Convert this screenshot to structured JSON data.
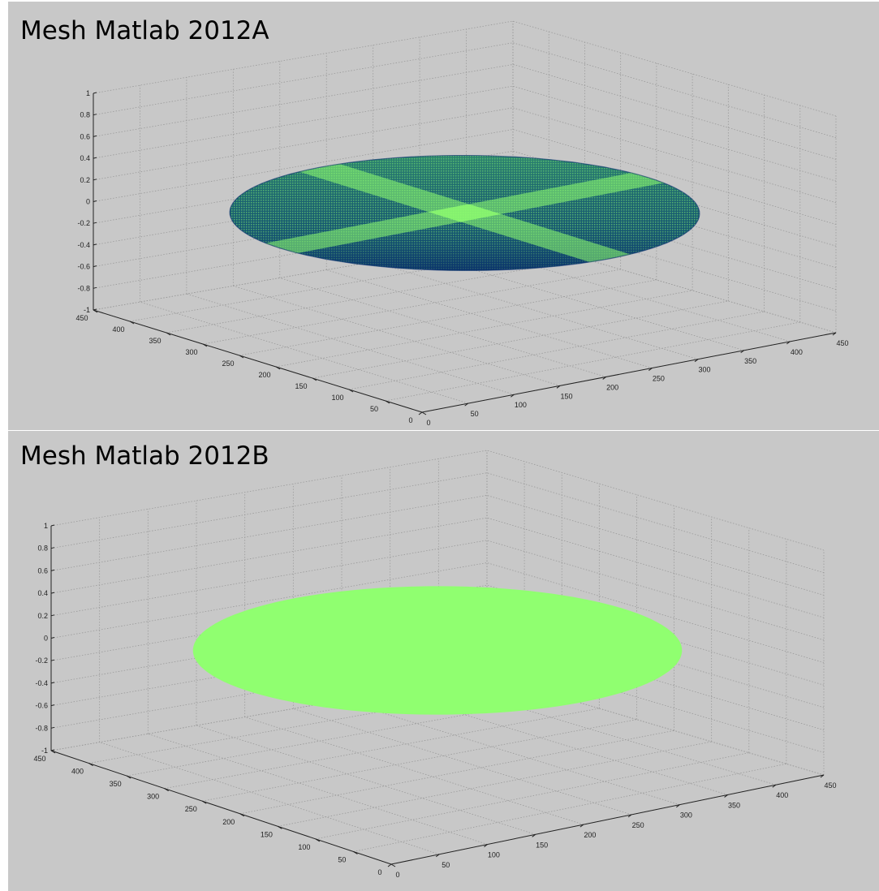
{
  "colors": {
    "figure_background": "#c8c8c8",
    "axes_background": "#ffffff",
    "surface_light": "#90ff70",
    "surface_dark": "#0a2f6e"
  },
  "chart_data": [
    {
      "type": "mesh3d",
      "title": "Mesh Matlab 2012A",
      "surface": "flat disk mesh at z = 0 with dense edge lines; light green cross bands along x and y through the centre, dark blue-green elsewhere",
      "x_ticks": [
        "0",
        "50",
        "100",
        "150",
        "200",
        "250",
        "300",
        "350",
        "400",
        "450"
      ],
      "y_ticks": [
        "0",
        "50",
        "100",
        "150",
        "200",
        "250",
        "300",
        "350",
        "400",
        "450"
      ],
      "z_ticks": [
        "-1",
        "-0.8",
        "-0.6",
        "-0.4",
        "-0.2",
        "0",
        "0.2",
        "0.4",
        "0.6",
        "0.8",
        "1"
      ],
      "xlim": [
        0,
        450
      ],
      "ylim": [
        0,
        450
      ],
      "zlim": [
        -1,
        1
      ],
      "grid": true
    },
    {
      "type": "mesh3d",
      "title": "Mesh Matlab 2012B",
      "surface": "flat disk at z = 0 rendered solid light green",
      "x_ticks": [
        "0",
        "50",
        "100",
        "150",
        "200",
        "250",
        "300",
        "350",
        "400",
        "450"
      ],
      "y_ticks": [
        "0",
        "50",
        "100",
        "150",
        "200",
        "250",
        "300",
        "350",
        "400",
        "450"
      ],
      "z_ticks": [
        "-1",
        "-0.8",
        "-0.6",
        "-0.4",
        "-0.2",
        "0",
        "0.2",
        "0.4",
        "0.6",
        "0.8",
        "1"
      ],
      "xlim": [
        0,
        450
      ],
      "ylim": [
        0,
        450
      ],
      "zlim": [
        -1,
        1
      ],
      "grid": true
    }
  ]
}
